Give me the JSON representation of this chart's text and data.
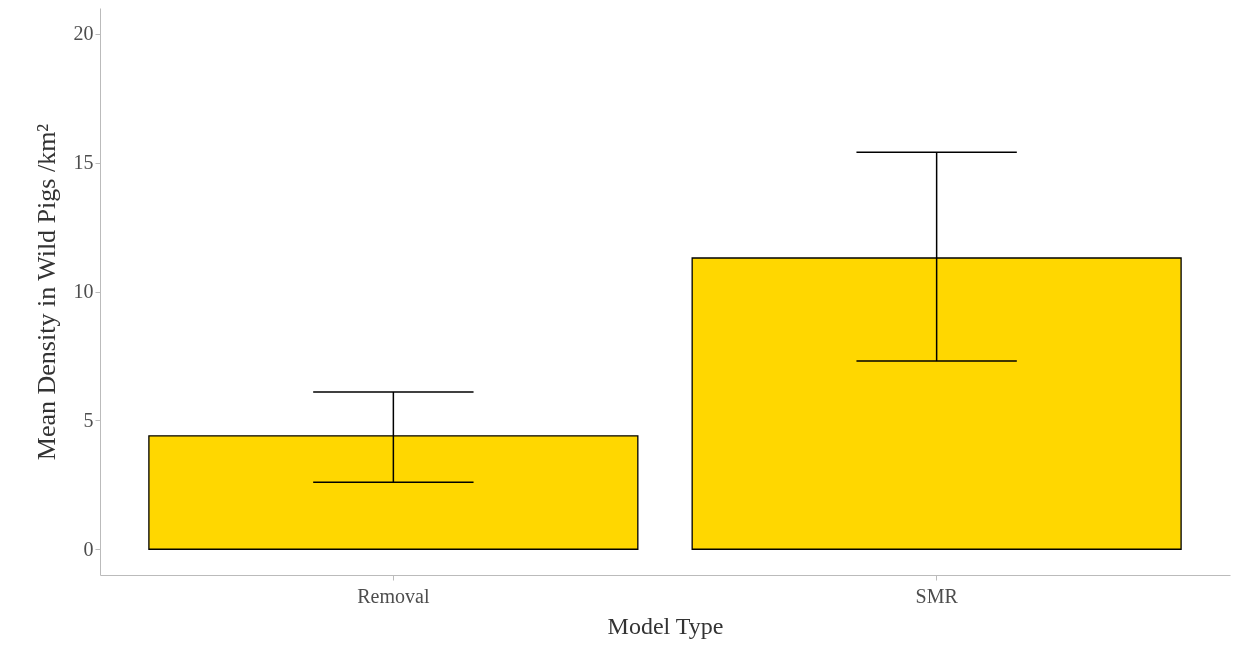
{
  "chart_data": {
    "type": "bar",
    "xlabel": "Model Type",
    "ylabel": "Mean Density in Wild Pigs /km²",
    "categories": [
      "Removal",
      "SMR"
    ],
    "values": [
      4.4,
      11.3
    ],
    "errors": [
      [
        2.6,
        6.1
      ],
      [
        7.3,
        15.4
      ]
    ],
    "color": "#ffd700",
    "ylim": [
      -1,
      21
    ],
    "yticks": [
      0,
      5,
      10,
      15,
      20
    ],
    "grid": false
  }
}
